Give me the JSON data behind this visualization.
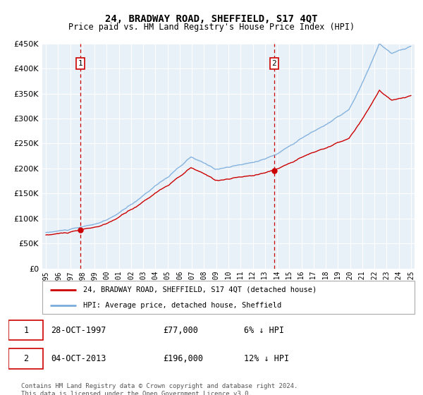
{
  "title": "24, BRADWAY ROAD, SHEFFIELD, S17 4QT",
  "subtitle": "Price paid vs. HM Land Registry's House Price Index (HPI)",
  "sale1_date_label": "28-OCT-1997",
  "sale1_price": 77000,
  "sale1_hpi_note": "6% ↓ HPI",
  "sale2_date_label": "04-OCT-2013",
  "sale2_price": 196000,
  "sale2_hpi_note": "12% ↓ HPI",
  "legend_property": "24, BRADWAY ROAD, SHEFFIELD, S17 4QT (detached house)",
  "legend_hpi": "HPI: Average price, detached house, Sheffield",
  "footer": "Contains HM Land Registry data © Crown copyright and database right 2024.\nThis data is licensed under the Open Government Licence v3.0.",
  "hpi_color": "#7aaddc",
  "property_color": "#cc0000",
  "vline_color": "#cc0000",
  "ylim": [
    0,
    450000
  ],
  "yticks": [
    0,
    50000,
    100000,
    150000,
    200000,
    250000,
    300000,
    350000,
    400000,
    450000
  ],
  "plot_bg_color": "#e8f0f8",
  "grid_color": "#ffffff",
  "sale1_x": 1997.83,
  "sale2_x": 2013.75,
  "xlim_left": 1994.7,
  "xlim_right": 2025.3
}
